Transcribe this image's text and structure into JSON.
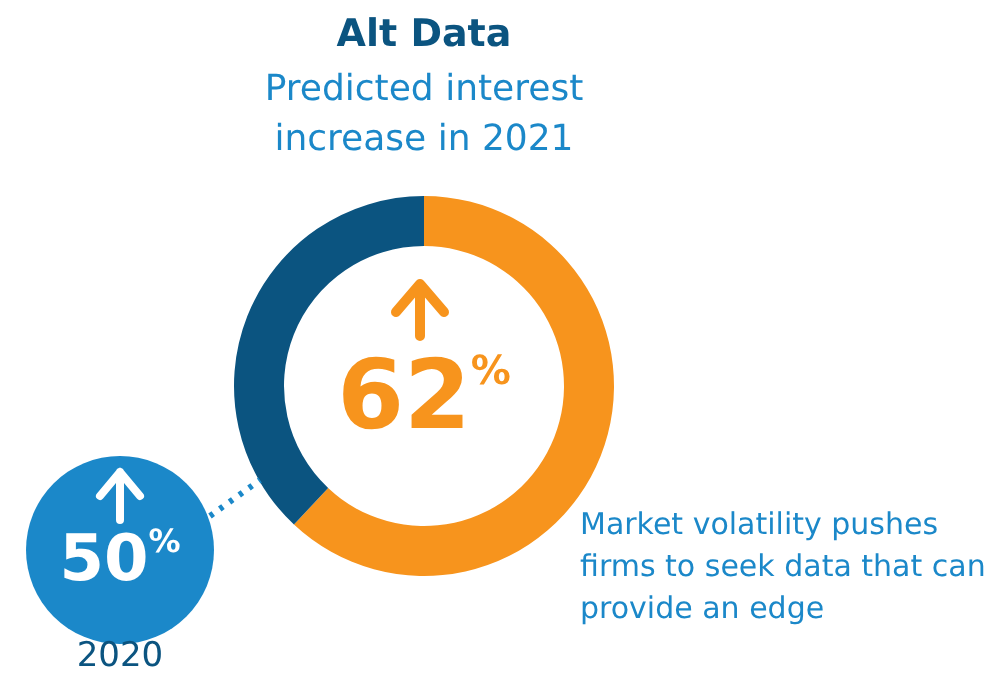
{
  "chart_data": {
    "type": "donut",
    "title": "Alt Data",
    "subtitle": "Predicted interest increase in 2021",
    "categories": [
      null,
      null
    ],
    "values": [
      62,
      38
    ],
    "colors": [
      "#f7941d",
      "#0b5480"
    ],
    "annotations": [
      "50$^{%}$",
      "2020",
      "Market volatility pushes firms to seek data that can provide an edge",
      "62$^{%}$"
    ]
  }
}
